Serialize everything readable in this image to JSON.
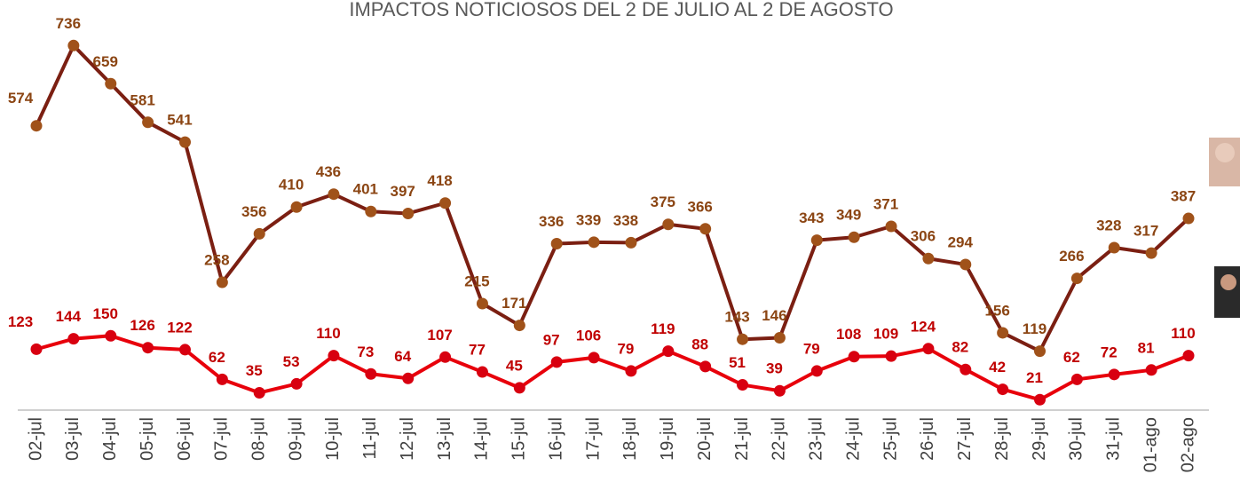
{
  "chart_data": {
    "type": "line",
    "title": "IMPACTOS NOTICIOSOS DEL 2 DE JULIO AL 2 DE AGOSTO",
    "categories": [
      "02-jul",
      "03-jul",
      "04-jul",
      "05-jul",
      "06-jul",
      "07-jul",
      "08-jul",
      "09-jul",
      "10-jul",
      "11-jul",
      "12-jul",
      "13-jul",
      "14-jul",
      "15-jul",
      "16-jul",
      "17-jul",
      "18-jul",
      "19-jul",
      "20-jul",
      "21-jul",
      "22-jul",
      "23-jul",
      "24-jul",
      "25-jul",
      "26-jul",
      "27-jul",
      "28-jul",
      "29-jul",
      "30-jul",
      "31-jul",
      "01-ago",
      "02-ago"
    ],
    "series": [
      {
        "color": "#7b1f12",
        "marker_color": "#a0521a",
        "label_color": "#8b4513",
        "values": [
          574,
          736,
          659,
          581,
          541,
          258,
          356,
          410,
          436,
          401,
          397,
          418,
          215,
          171,
          336,
          339,
          338,
          375,
          366,
          143,
          146,
          343,
          349,
          371,
          306,
          294,
          156,
          119,
          266,
          328,
          317,
          387
        ]
      },
      {
        "color": "#e8000b",
        "marker_color": "#d80010",
        "label_color": "#c00000",
        "values": [
          123,
          144,
          150,
          126,
          122,
          62,
          35,
          53,
          110,
          73,
          64,
          107,
          77,
          45,
          97,
          106,
          79,
          119,
          88,
          51,
          39,
          79,
          108,
          109,
          124,
          82,
          42,
          21,
          62,
          72,
          81,
          110
        ]
      }
    ],
    "ylim": [
      0,
      800
    ],
    "grid": false
  }
}
